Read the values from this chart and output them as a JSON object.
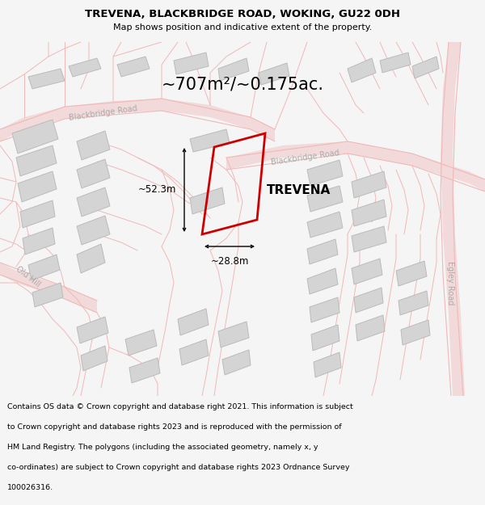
{
  "title": "TREVENA, BLACKBRIDGE ROAD, WOKING, GU22 0DH",
  "subtitle": "Map shows position and indicative extent of the property.",
  "area_text": "~707m²/~0.175ac.",
  "property_name": "TREVENA",
  "dim_width": "~28.8m",
  "dim_height": "~52.3m",
  "footer": "Contains OS data © Crown copyright and database right 2021. This information is subject to Crown copyright and database rights 2023 and is reproduced with the permission of HM Land Registry. The polygons (including the associated geometry, namely x, y co-ordinates) are subject to Crown copyright and database rights 2023 Ordnance Survey 100026316.",
  "bg_color": "#f5f5f5",
  "map_bg": "#ffffff",
  "road_color": "#f0b8b8",
  "building_fill": "#d4d4d4",
  "building_edge": "#bbbbbb",
  "property_edge": "#cc0000",
  "road_label_color": "#aaaaaa",
  "title_fontsize": 9.5,
  "subtitle_fontsize": 8.0,
  "area_fontsize": 15,
  "label_fontsize": 11,
  "dim_fontsize": 8.5,
  "road_label_fontsize": 7.0,
  "footer_fontsize": 6.8
}
